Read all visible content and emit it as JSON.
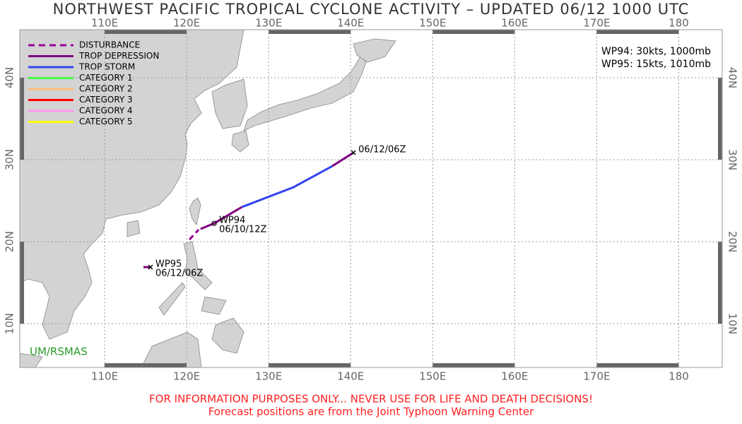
{
  "title": "NORTHWEST PACIFIC TROPICAL CYCLONE ACTIVITY – UPDATED 06/12 1000 UTC",
  "map": {
    "lon_range": [
      99.66,
      185.3
    ],
    "lat_range": [
      4.66,
      45.86
    ],
    "lon_lines": [
      {
        "value": 110,
        "label": "110E"
      },
      {
        "value": 120,
        "label": "120E"
      },
      {
        "value": 130,
        "label": "130E"
      },
      {
        "value": 140,
        "label": "140E"
      },
      {
        "value": 150,
        "label": "150E"
      },
      {
        "value": 160,
        "label": "160E"
      },
      {
        "value": 170,
        "label": "170E"
      },
      {
        "value": 180,
        "label": "180"
      }
    ],
    "lat_lines": [
      {
        "value": 10,
        "label": "10N"
      },
      {
        "value": 20,
        "label": "20N"
      },
      {
        "value": 30,
        "label": "30N"
      },
      {
        "value": 40,
        "label": "40N"
      }
    ]
  },
  "legend": [
    {
      "label": "DISTURBANCE",
      "color": "#990099",
      "dashed": true
    },
    {
      "label": "TROP DEPRESSION",
      "color": "#800080",
      "dashed": false
    },
    {
      "label": "TROP STORM",
      "color": "#3344ee",
      "dashed": false
    },
    {
      "label": "CATEGORY 1",
      "color": "#44ff44",
      "dashed": false
    },
    {
      "label": "CATEGORY 2",
      "color": "#ffbb77",
      "dashed": false
    },
    {
      "label": "CATEGORY 3",
      "color": "#ff0000",
      "dashed": false
    },
    {
      "label": "CATEGORY 4",
      "color": "#ff99ee",
      "dashed": false
    },
    {
      "label": "CATEGORY 5",
      "color": "#ffff00",
      "dashed": false
    }
  ],
  "status": [
    "WP94: 30kts, 1000mb",
    "WP95: 15kts, 1010mb"
  ],
  "storms": [
    {
      "segments": [
        {
          "intensity": "DISTURBANCE",
          "points": [
            [
              120.34,
              20.26
            ],
            [
              121.47,
              21.47
            ]
          ]
        },
        {
          "intensity": "TROP DEPRESSION",
          "points": [
            [
              121.7,
              21.55
            ],
            [
              123.36,
              22.24
            ],
            [
              126.72,
              24.22
            ]
          ]
        },
        {
          "intensity": "TROP STORM",
          "points": [
            [
              126.72,
              24.22
            ],
            [
              133.02,
              26.64
            ],
            [
              137.76,
              29.22
            ]
          ]
        },
        {
          "intensity": "TROP DEPRESSION",
          "points": [
            [
              137.76,
              29.22
            ],
            [
              140.34,
              30.86
            ]
          ]
        }
      ],
      "labels": [
        {
          "lines": [
            "WP94",
            "06/10/12Z"
          ],
          "at": [
            123.36,
            22.24
          ],
          "symbol": "o"
        },
        {
          "lines": [
            "06/12/06Z"
          ],
          "at": [
            140.34,
            30.86
          ],
          "symbol": "x"
        }
      ]
    },
    {
      "segments": [
        {
          "intensity": "TROP DEPRESSION",
          "points": [
            [
              114.74,
              16.9
            ],
            [
              115.6,
              16.9
            ]
          ]
        }
      ],
      "labels": [
        {
          "lines": [
            "WP95",
            "06/12/06Z"
          ],
          "at": [
            115.6,
            16.9
          ],
          "symbol": "x"
        }
      ]
    }
  ],
  "credit": "UM/RSMAS",
  "footer": [
    "FOR INFORMATION PURPOSES ONLY... NEVER USE FOR LIFE AND DEATH DECISIONS!",
    "Forecast positions are from the Joint Typhoon Warning Center"
  ]
}
